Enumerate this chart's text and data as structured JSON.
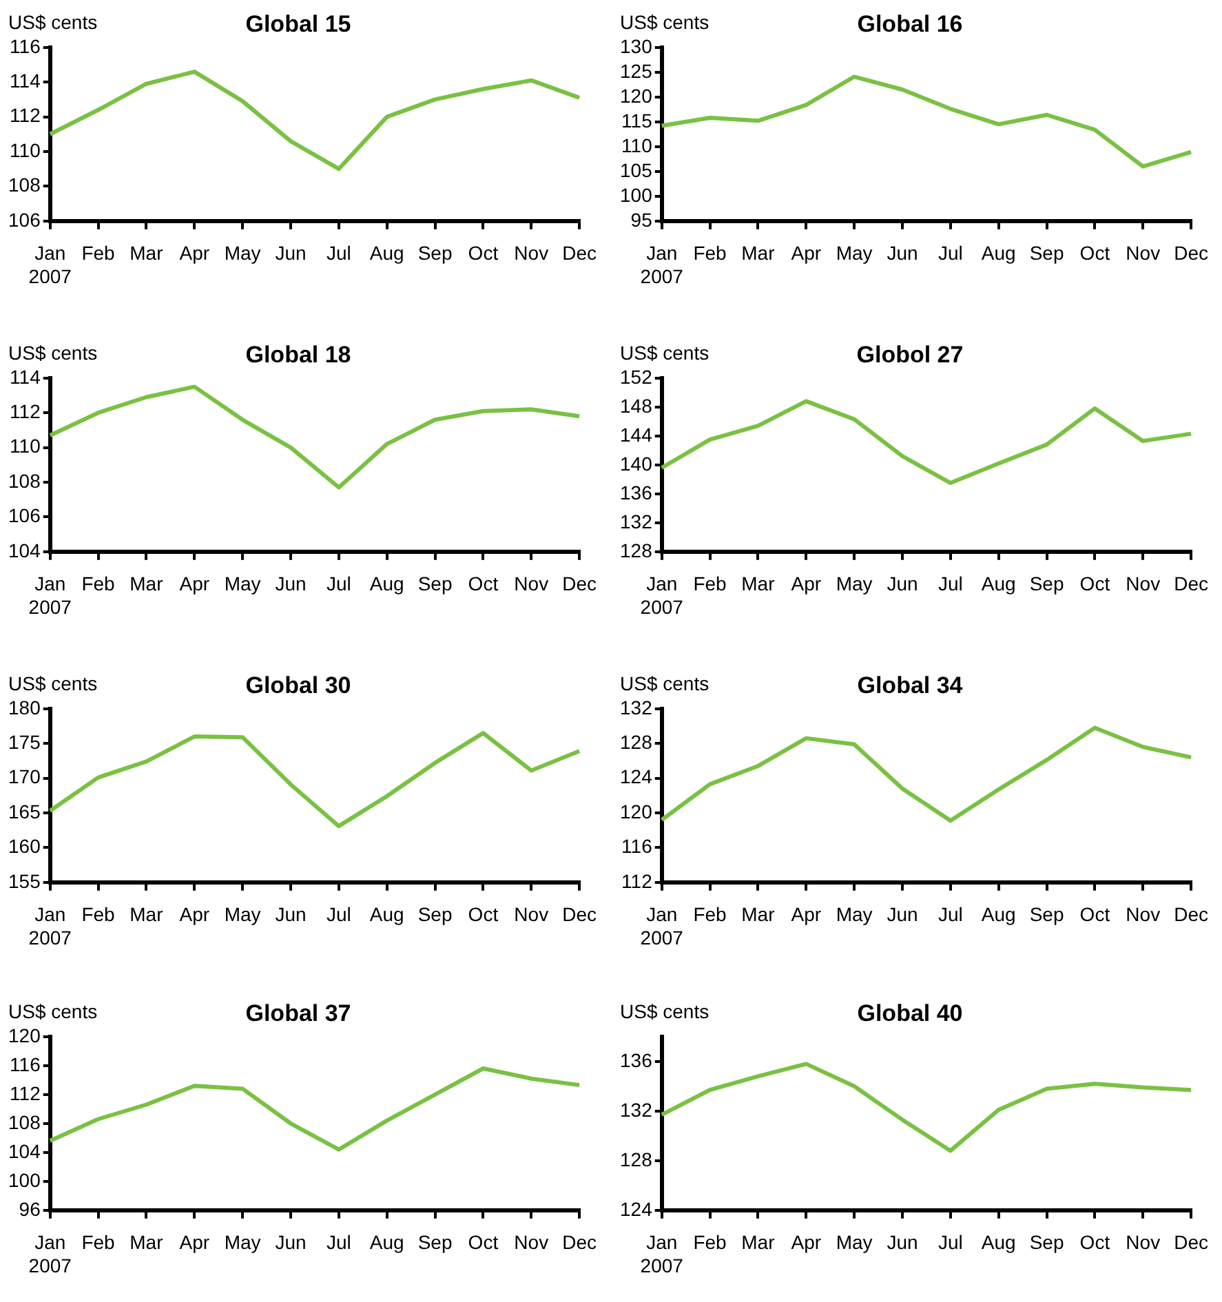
{
  "chart_data": [
    {
      "type": "line",
      "title": "Global 15",
      "ylabel": "US$ cents",
      "categories": [
        "Jan\n2007",
        "Feb",
        "Mar",
        "Apr",
        "May",
        "Jun",
        "Jul",
        "Aug",
        "Sep",
        "Oct",
        "Nov",
        "Dec"
      ],
      "values": [
        111,
        112.4,
        113.9,
        114.6,
        112.9,
        110.6,
        109,
        112,
        113,
        113.6,
        114.1,
        113.1
      ],
      "color": "#7ac143",
      "ylim": [
        106,
        116
      ],
      "yticks": [
        106,
        108,
        110,
        112,
        114,
        116
      ],
      "grid": false,
      "legend": false,
      "marker": "none"
    },
    {
      "type": "line",
      "title": "Global 16",
      "ylabel": "US$ cents",
      "categories": [
        "Jan\n2007",
        "Feb",
        "Mar",
        "Apr",
        "May",
        "Jun",
        "Jul",
        "Aug",
        "Sep",
        "Oct",
        "Nov",
        "Dec"
      ],
      "values": [
        114.2,
        115.8,
        115.2,
        118.4,
        124.1,
        121.5,
        117.6,
        114.5,
        116.4,
        113.4,
        106,
        108.9
      ],
      "color": "#7ac143",
      "ylim": [
        95,
        130
      ],
      "yticks": [
        95,
        100,
        105,
        110,
        115,
        120,
        125,
        130
      ],
      "grid": false,
      "legend": false,
      "marker": "none"
    },
    {
      "type": "line",
      "title": "Global 18",
      "ylabel": "US$ cents",
      "categories": [
        "Jan\n2007",
        "Feb",
        "Mar",
        "Apr",
        "May",
        "Jun",
        "Jul",
        "Aug",
        "Sep",
        "Oct",
        "Nov",
        "Dec"
      ],
      "values": [
        110.7,
        112,
        112.9,
        113.5,
        111.6,
        110,
        107.7,
        110.2,
        111.6,
        112.1,
        112.2,
        111.8
      ],
      "color": "#7ac143",
      "ylim": [
        104,
        114
      ],
      "yticks": [
        104,
        106,
        108,
        110,
        112,
        114
      ],
      "grid": false,
      "legend": false,
      "marker": "none"
    },
    {
      "type": "line",
      "title": "Globol 27",
      "ylabel": "US$ cents",
      "categories": [
        "Jan\n2007",
        "Feb",
        "Mar",
        "Apr",
        "May",
        "Jun",
        "Jul",
        "Aug",
        "Sep",
        "Oct",
        "Nov",
        "Dec"
      ],
      "values": [
        139.6,
        143.5,
        145.4,
        148.8,
        146.3,
        141.2,
        137.5,
        140.2,
        142.8,
        147.8,
        143.3,
        144.3
      ],
      "color": "#7ac143",
      "ylim": [
        128,
        152
      ],
      "yticks": [
        128,
        132,
        136,
        140,
        144,
        148,
        152
      ],
      "grid": false,
      "legend": false,
      "marker": "none"
    },
    {
      "type": "line",
      "title": "Global 30",
      "ylabel": "US$ cents",
      "categories": [
        "Jan\n2007",
        "Feb",
        "Mar",
        "Apr",
        "May",
        "Jun",
        "Jul",
        "Aug",
        "Sep",
        "Oct",
        "Nov",
        "Dec"
      ],
      "values": [
        165.3,
        170.1,
        172.4,
        176,
        175.9,
        169.1,
        163.1,
        167.4,
        172.2,
        176.5,
        171.1,
        173.9
      ],
      "color": "#7ac143",
      "ylim": [
        155,
        180
      ],
      "yticks": [
        155,
        160,
        165,
        170,
        175,
        180
      ],
      "grid": false,
      "legend": false,
      "marker": "none"
    },
    {
      "type": "line",
      "title": "Global 34",
      "ylabel": "US$ cents",
      "categories": [
        "Jan\n2007",
        "Feb",
        "Mar",
        "Apr",
        "May",
        "Jun",
        "Jul",
        "Aug",
        "Sep",
        "Oct",
        "Nov",
        "Dec"
      ],
      "values": [
        119.2,
        123.3,
        125.4,
        128.6,
        127.9,
        122.8,
        119.1,
        122.7,
        126.1,
        129.8,
        127.6,
        126.4
      ],
      "color": "#7ac143",
      "ylim": [
        112,
        132
      ],
      "yticks": [
        112,
        116,
        120,
        124,
        128,
        132
      ],
      "grid": false,
      "legend": false,
      "marker": "none"
    },
    {
      "type": "line",
      "title": "Global 37",
      "ylabel": "US$ cents",
      "categories": [
        "Jan\n2007",
        "Feb",
        "Mar",
        "Apr",
        "May",
        "Jun",
        "Jul",
        "Aug",
        "Sep",
        "Oct",
        "Nov",
        "Dec"
      ],
      "values": [
        105.6,
        108.6,
        110.6,
        113.2,
        112.8,
        108,
        104.4,
        108.4,
        112,
        115.6,
        114.2,
        113.3
      ],
      "color": "#7ac143",
      "ylim": [
        96,
        120
      ],
      "yticks": [
        96,
        100,
        104,
        108,
        112,
        116,
        120
      ],
      "grid": false,
      "legend": false,
      "marker": "none"
    },
    {
      "type": "line",
      "title": "Global 40",
      "ylabel": "US$ cents",
      "categories": [
        "Jan\n2007",
        "Feb",
        "Mar",
        "Apr",
        "May",
        "Jun",
        "Jul",
        "Aug",
        "Sep",
        "Oct",
        "Nov",
        "Dec"
      ],
      "values": [
        131.7,
        133.7,
        134.8,
        135.8,
        134,
        131.3,
        128.8,
        132.1,
        133.8,
        134.2,
        133.9,
        133.7
      ],
      "color": "#7ac143",
      "ylim": [
        124,
        138
      ],
      "yticks": [
        124,
        128,
        132,
        136
      ],
      "grid": false,
      "legend": false,
      "marker": "none"
    }
  ]
}
